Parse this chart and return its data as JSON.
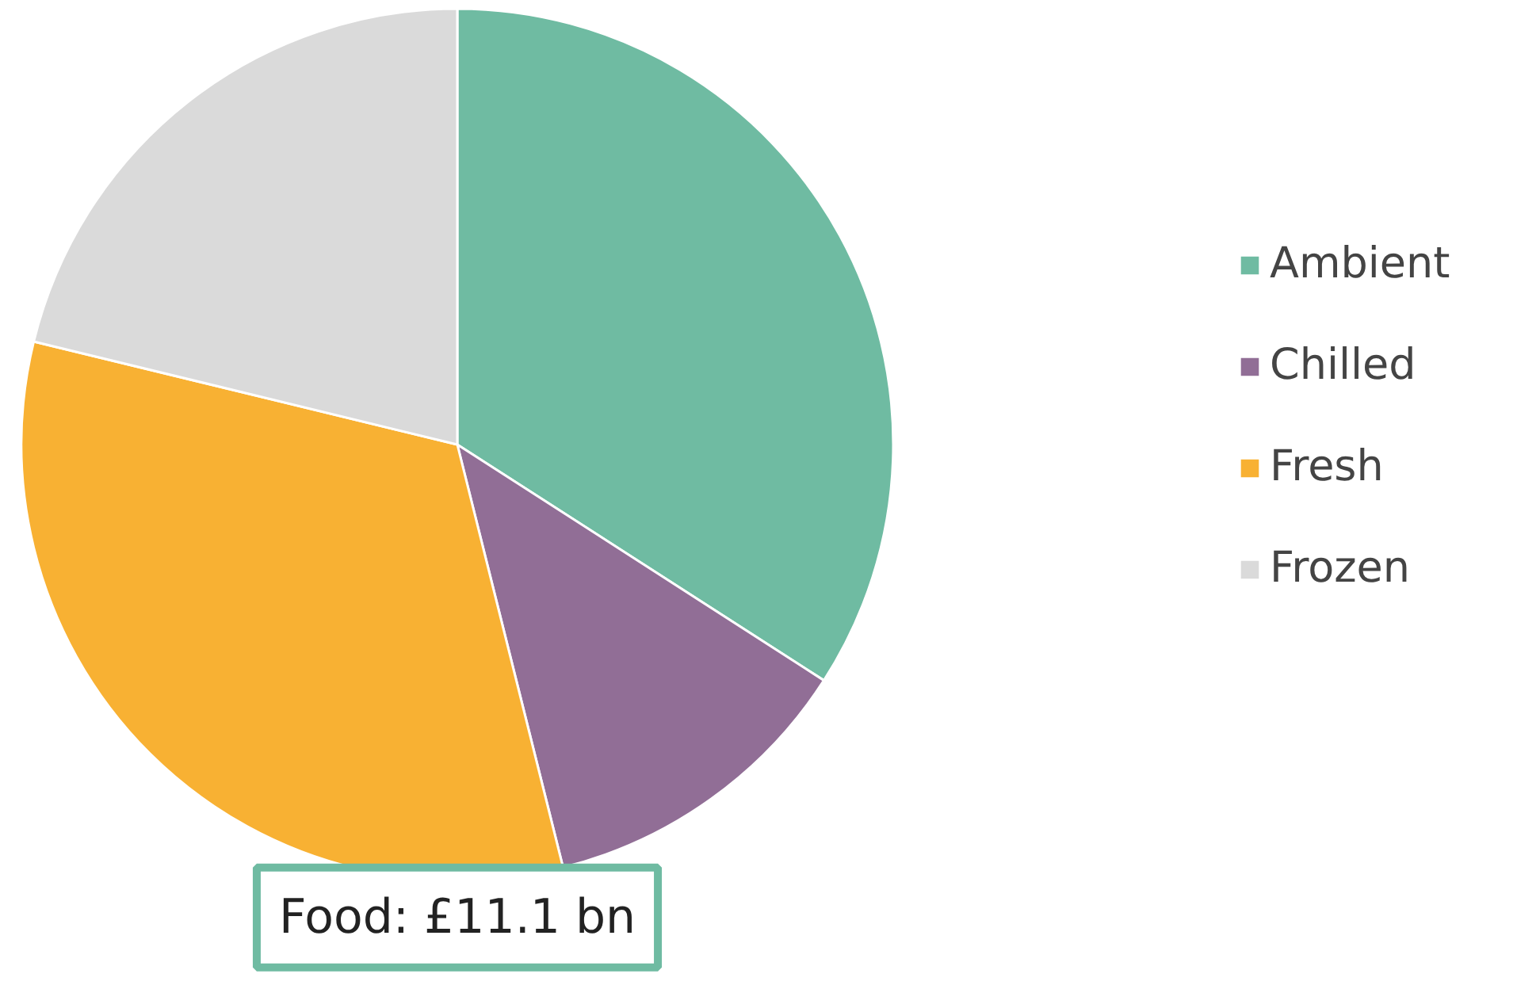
{
  "chart_data": {
    "type": "pie",
    "categories": [
      "Ambient",
      "Chilled",
      "Fresh",
      "Frozen"
    ],
    "values": [
      34.1,
      12.0,
      32.7,
      21.2
    ],
    "colors": [
      "#6fbba2",
      "#916e96",
      "#f8b133",
      "#dadada"
    ],
    "legend": "right",
    "annotations": [
      "Food: £11.1 bn"
    ]
  }
}
